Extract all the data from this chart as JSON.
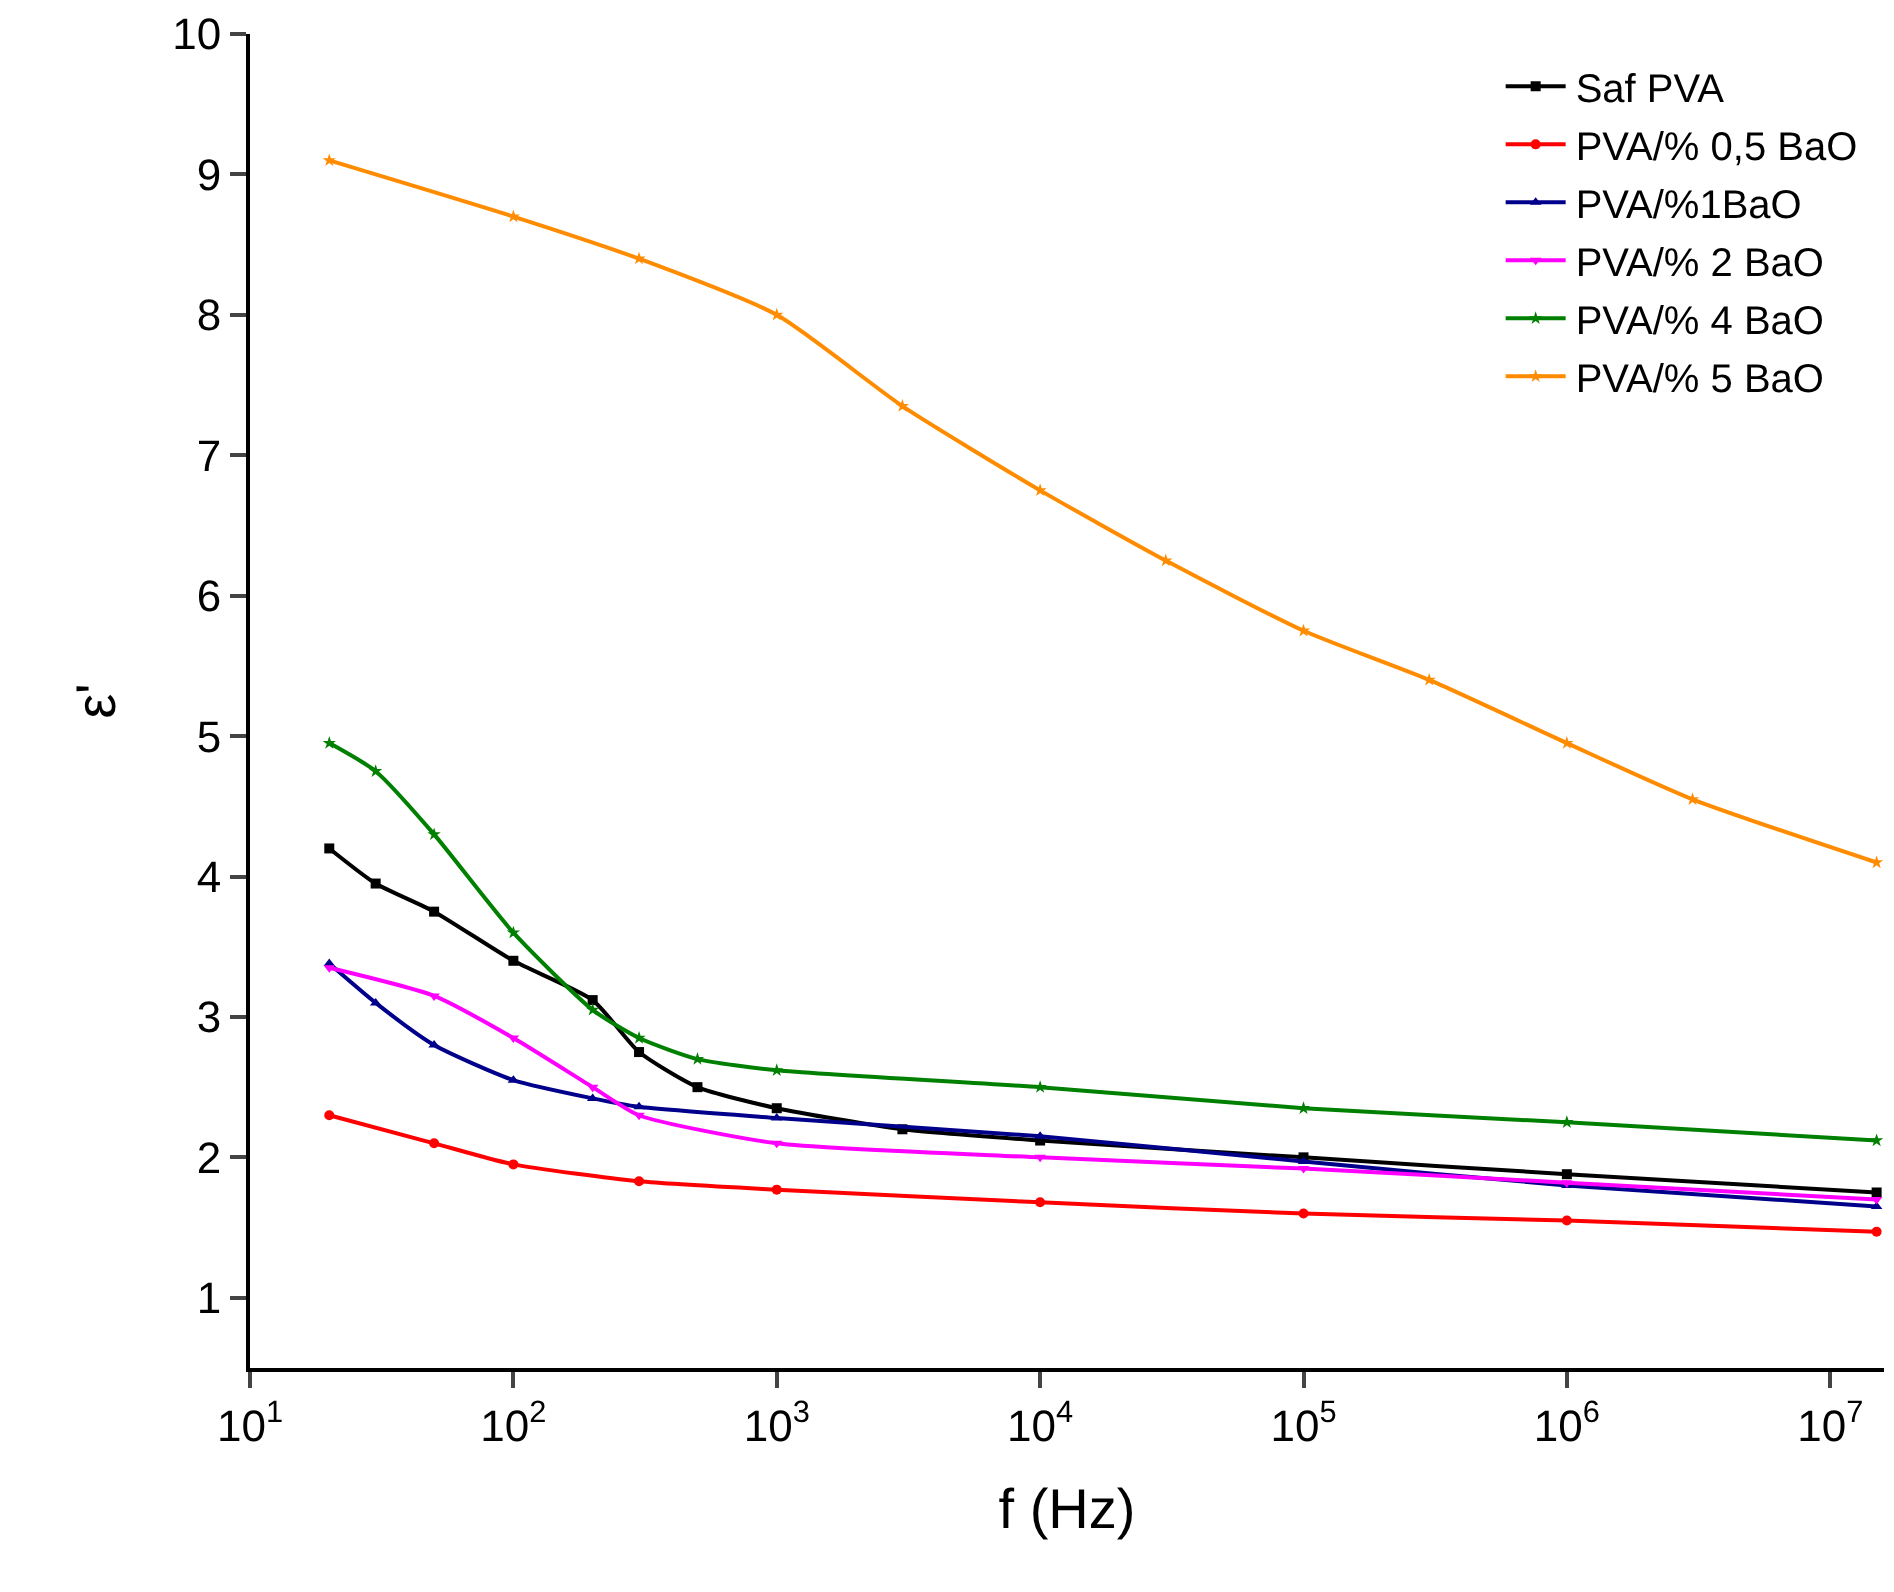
{
  "chart_data": {
    "type": "line",
    "xlabel": "f (Hz)",
    "ylabel": "ε'",
    "log": "x",
    "xlim": [
      10,
      16000000
    ],
    "xticks": [
      {
        "value": 10,
        "label": "10$^{1}$"
      },
      {
        "value": 100,
        "label": "10$^{2}$"
      },
      {
        "value": 1000,
        "label": "10$^{3}$"
      },
      {
        "value": 10000,
        "label": "10$^{4}$"
      },
      {
        "value": 100000,
        "label": "10$^{5}$"
      },
      {
        "value": 1000000,
        "label": "10$^{6}$"
      },
      {
        "value": 10000000,
        "label": "10$^{7}$"
      }
    ],
    "ylim": [
      0.5,
      10
    ],
    "yticks": [
      1,
      2,
      3,
      4,
      5,
      6,
      7,
      8,
      9,
      10
    ],
    "grid": false,
    "legend": "top right",
    "line_style": "solid",
    "series": [
      {
        "name": "Saf PVA",
        "color": "#000000",
        "marker": "square",
        "x": [
          20,
          30,
          50,
          100,
          200,
          300,
          500,
          1000,
          3000,
          10000,
          100000,
          1000000,
          15000000
        ],
        "values": [
          4.2,
          3.95,
          3.75,
          3.4,
          3.12,
          2.75,
          2.5,
          2.35,
          2.2,
          2.12,
          2.0,
          1.88,
          1.75
        ]
      },
      {
        "name": "PVA/% 0,5 BaO",
        "color": "#ff0000",
        "marker": "circle",
        "x": [
          20,
          50,
          100,
          300,
          1000,
          10000,
          100000,
          1000000,
          15000000
        ],
        "values": [
          2.3,
          2.1,
          1.95,
          1.83,
          1.77,
          1.68,
          1.6,
          1.55,
          1.47
        ]
      },
      {
        "name": "PVA/%1BaO",
        "color": "#00008b",
        "marker": "triangle",
        "x": [
          20,
          30,
          50,
          100,
          200,
          300,
          1000,
          10000,
          100000,
          1000000,
          15000000
        ],
        "values": [
          3.38,
          3.1,
          2.8,
          2.55,
          2.42,
          2.36,
          2.28,
          2.15,
          1.97,
          1.8,
          1.65
        ]
      },
      {
        "name": "PVA/% 2 BaO",
        "color": "#ff00ff",
        "marker": "triangle-down",
        "x": [
          20,
          50,
          100,
          200,
          300,
          1000,
          10000,
          100000,
          1000000,
          15000000
        ],
        "values": [
          3.35,
          3.15,
          2.85,
          2.5,
          2.3,
          2.1,
          2.0,
          1.92,
          1.82,
          1.7
        ]
      },
      {
        "name": "PVA/% 4 BaO",
        "color": "#008000",
        "marker": "star",
        "x": [
          20,
          30,
          50,
          100,
          200,
          300,
          500,
          1000,
          10000,
          100000,
          1000000,
          15000000
        ],
        "values": [
          4.95,
          4.75,
          4.3,
          3.6,
          3.05,
          2.85,
          2.7,
          2.62,
          2.5,
          2.35,
          2.25,
          2.12
        ]
      },
      {
        "name": "PVA/% 5 BaO",
        "color": "#ff8c00",
        "marker": "star",
        "x": [
          20,
          100,
          300,
          1000,
          3000,
          10000,
          30000,
          100000,
          300000,
          1000000,
          3000000,
          15000000
        ],
        "values": [
          9.1,
          8.7,
          8.4,
          8.0,
          7.35,
          6.75,
          6.25,
          5.75,
          5.4,
          4.95,
          4.55,
          4.1
        ]
      }
    ]
  }
}
